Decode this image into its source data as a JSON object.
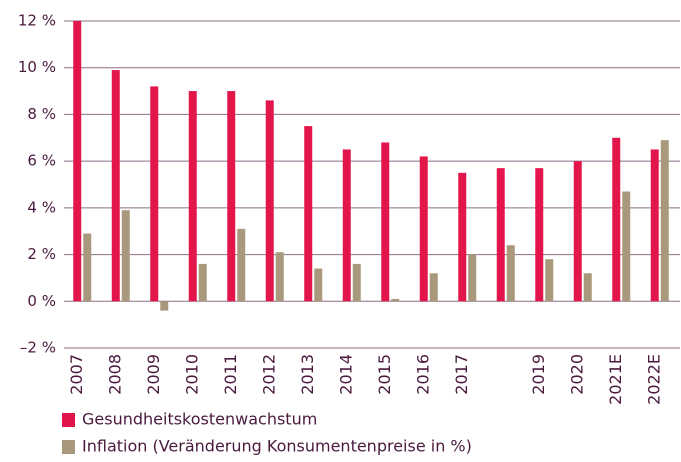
{
  "chart_data": {
    "type": "bar",
    "categories": [
      "2007",
      "2008",
      "2009",
      "2010",
      "2011",
      "2012",
      "2013",
      "2014",
      "2015",
      "2016",
      "2017",
      null,
      "2019",
      "2020",
      "2021E",
      "2022E"
    ],
    "series": [
      {
        "name": "Gesundheitskostenwachstum",
        "color": "#e3164c",
        "values": [
          12.0,
          9.9,
          9.2,
          9.0,
          9.0,
          8.6,
          7.5,
          6.5,
          6.8,
          6.2,
          5.5,
          5.7,
          5.7,
          6.0,
          7.0,
          6.5
        ]
      },
      {
        "name": "Inflation (Veränderung Konsumentenpreise in %)",
        "color": "#a8997c",
        "values": [
          2.9,
          3.9,
          -0.4,
          1.6,
          3.1,
          2.1,
          1.4,
          1.6,
          0.1,
          1.2,
          2.0,
          2.4,
          1.8,
          1.2,
          4.7,
          6.9
        ]
      }
    ],
    "ylim": [
      -2,
      12
    ],
    "yticks": [
      {
        "value": -2,
        "label": "–2 %"
      },
      {
        "value": 0,
        "label": "0 %"
      },
      {
        "value": 2,
        "label": "2 %"
      },
      {
        "value": 4,
        "label": "4 %"
      },
      {
        "value": 6,
        "label": "6 %"
      },
      {
        "value": 8,
        "label": "8 %"
      },
      {
        "value": 10,
        "label": "10 %"
      },
      {
        "value": 12,
        "label": "12 %"
      }
    ],
    "grid": true,
    "legend": "bottom"
  }
}
